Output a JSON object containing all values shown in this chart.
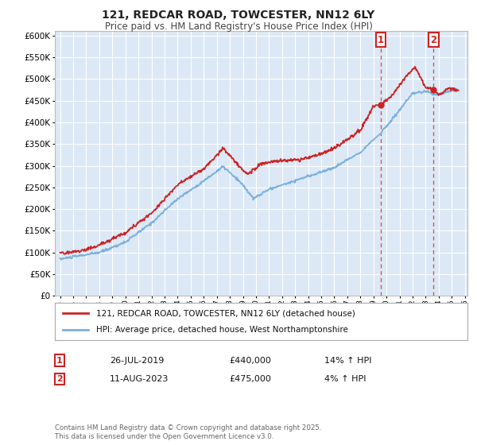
{
  "title1": "121, REDCAR ROAD, TOWCESTER, NN12 6LY",
  "title2": "Price paid vs. HM Land Registry's House Price Index (HPI)",
  "hpi_color": "#7ab0dc",
  "price_color": "#cc2222",
  "marker1_date": 2019.57,
  "marker2_date": 2023.61,
  "marker1_price": 440000,
  "marker2_price": 475000,
  "legend1": "121, REDCAR ROAD, TOWCESTER, NN12 6LY (detached house)",
  "legend2": "HPI: Average price, detached house, West Northamptonshire",
  "annotation1_date": "26-JUL-2019",
  "annotation1_price": "£440,000",
  "annotation1_hpi": "14% ↑ HPI",
  "annotation2_date": "11-AUG-2023",
  "annotation2_price": "£475,000",
  "annotation2_hpi": "4% ↑ HPI",
  "footer": "Contains HM Land Registry data © Crown copyright and database right 2025.\nThis data is licensed under the Open Government Licence v3.0.",
  "plot_bg": "#dce8f5",
  "grid_color": "#ffffff",
  "ylim": [
    0,
    610000
  ],
  "xlim_left": 1994.6,
  "xlim_right": 2026.2
}
